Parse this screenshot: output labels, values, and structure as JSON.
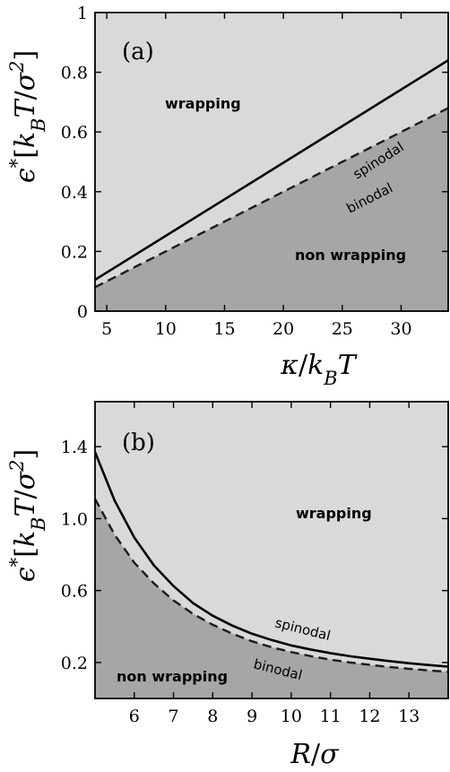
{
  "chart_data": [
    {
      "type": "area",
      "panel_label": "(a)",
      "xlabel": "κ/k_BT",
      "ylabel": "ϵ*[k_BT/σ²]",
      "xlim": [
        4,
        34
      ],
      "ylim": [
        0,
        1
      ],
      "xticks": [
        "5",
        "10",
        "15",
        "20",
        "25",
        "30"
      ],
      "xtick_values": [
        5,
        10,
        15,
        20,
        25,
        30
      ],
      "yticks": [
        "0",
        "0.2",
        "0.4",
        "0.6",
        "0.8",
        "1"
      ],
      "ytick_values": [
        0,
        0.2,
        0.4,
        0.6,
        0.8,
        1
      ],
      "grid": false,
      "series": [
        {
          "name": "spinodal",
          "style": "solid",
          "x": [
            4,
            34
          ],
          "y": [
            0.105,
            0.84
          ]
        },
        {
          "name": "binodal",
          "style": "dashed",
          "x": [
            4,
            34
          ],
          "y": [
            0.08,
            0.68
          ]
        }
      ],
      "regions": [
        {
          "label": "wrapping",
          "color": "#d9d9d9"
        },
        {
          "label": "non wrapping",
          "color": "#a6a6a6"
        }
      ]
    },
    {
      "type": "area",
      "panel_label": "(b)",
      "xlabel": "R/σ",
      "ylabel": "ϵ*[k_BT/σ²]",
      "xlim": [
        5,
        14
      ],
      "ylim": [
        0,
        1.65
      ],
      "xticks": [
        "6",
        "7",
        "8",
        "9",
        "10",
        "11",
        "12",
        "13"
      ],
      "xtick_values": [
        6,
        7,
        8,
        9,
        10,
        11,
        12,
        13
      ],
      "yticks": [
        "0.2",
        "0.6",
        "1.0",
        "1.4"
      ],
      "ytick_values": [
        0.2,
        0.6,
        1.0,
        1.4
      ],
      "grid": false,
      "series": [
        {
          "name": "spinodal",
          "style": "solid",
          "x": [
            5,
            5.5,
            6,
            6.5,
            7,
            7.5,
            8,
            8.5,
            9,
            9.5,
            10,
            10.5,
            11,
            11.5,
            12,
            12.5,
            13,
            13.5,
            14
          ],
          "y": [
            1.37,
            1.1,
            0.895,
            0.74,
            0.625,
            0.53,
            0.46,
            0.405,
            0.36,
            0.325,
            0.295,
            0.272,
            0.252,
            0.235,
            0.221,
            0.208,
            0.196,
            0.186,
            0.177
          ]
        },
        {
          "name": "binodal",
          "style": "dashed",
          "x": [
            5,
            5.5,
            6,
            6.5,
            7,
            7.5,
            8,
            8.5,
            9,
            9.5,
            10,
            10.5,
            11,
            11.5,
            12,
            12.5,
            13,
            13.5,
            14
          ],
          "y": [
            1.11,
            0.91,
            0.755,
            0.64,
            0.545,
            0.47,
            0.41,
            0.36,
            0.318,
            0.285,
            0.258,
            0.235,
            0.216,
            0.2,
            0.187,
            0.175,
            0.165,
            0.156,
            0.148
          ]
        }
      ],
      "regions": [
        {
          "label": "wrapping",
          "color": "#d9d9d9"
        },
        {
          "label": "non wrapping",
          "color": "#a6a6a6"
        }
      ]
    }
  ],
  "colors": {
    "light_region": "#d9d9d9",
    "dark_region": "#a6a6a6",
    "binodal_dash": "#1a1a2e"
  }
}
